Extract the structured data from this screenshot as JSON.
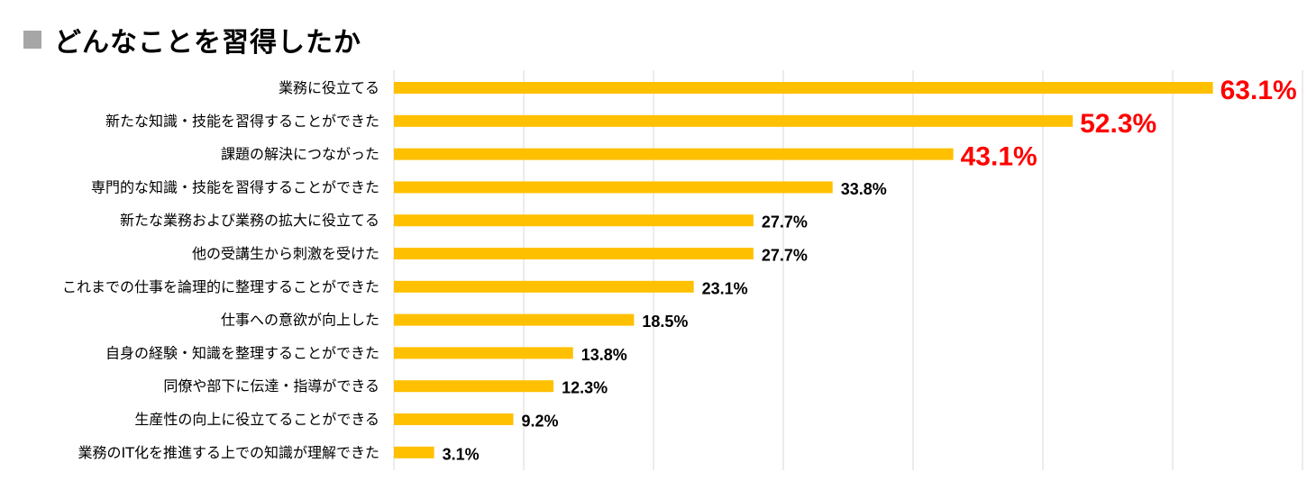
{
  "title": "どんなことを習得したか",
  "colors": {
    "bar": "#FFC000",
    "highlight": "#FF0000",
    "grid": "#D9D9D9",
    "title_square": "#A6A6A6"
  },
  "chart_data": {
    "type": "bar",
    "orientation": "horizontal",
    "title": "どんなことを習得したか",
    "xlabel": "",
    "ylabel": "",
    "xlim": [
      0,
      70
    ],
    "grid": "vertical",
    "categories": [
      "業務に役立てる",
      "新たな知識・技能を習得することができた",
      "課題の解決につながった",
      "専門的な知識・技能を習得することができた",
      "新たな業務および業務の拡大に役立てる",
      "他の受講生から刺激を受けた",
      "これまでの仕事を論理的に整理することができた",
      "仕事への意欲が向上した",
      "自身の経験・知識を整理することができた",
      "同僚や部下に伝達・指導ができる",
      "生産性の向上に役立てることができる",
      "業務のIT化を推進する上での知識が理解できた"
    ],
    "values": [
      63.1,
      52.3,
      43.1,
      33.8,
      27.7,
      27.7,
      23.1,
      18.5,
      13.8,
      12.3,
      9.2,
      3.1
    ],
    "labels": [
      "63.1%",
      "52.3%",
      "43.1%",
      "33.8%",
      "27.7%",
      "27.7%",
      "23.1%",
      "18.5%",
      "13.8%",
      "12.3%",
      "9.2%",
      "3.1%"
    ],
    "highlight_top": 3
  }
}
